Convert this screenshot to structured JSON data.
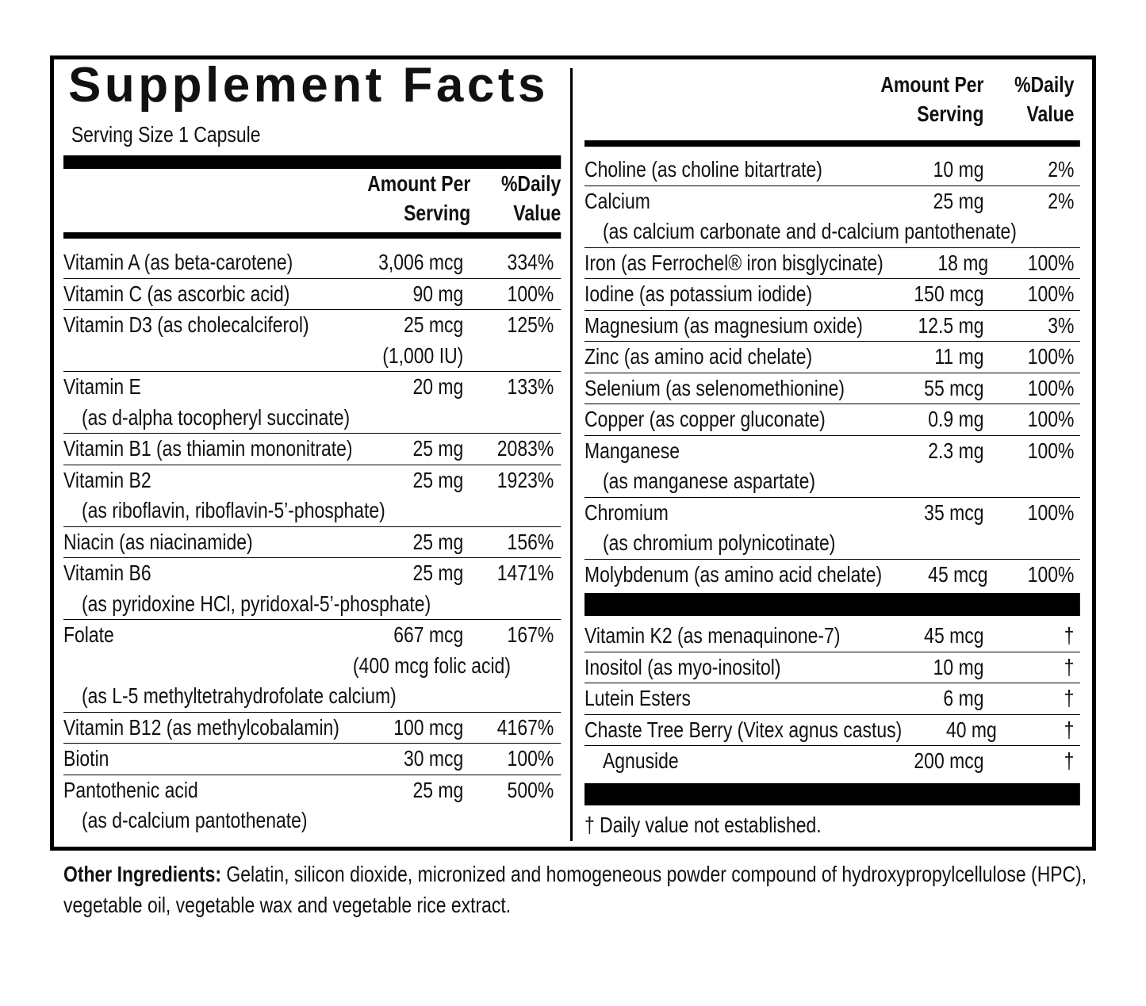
{
  "title": "Supplement Facts",
  "serving_size": "Serving Size 1 Capsule",
  "left": {
    "header": {
      "amount": [
        "Amount Per",
        "Serving"
      ],
      "dv": [
        "%Daily",
        "Value"
      ]
    },
    "rows": [
      {
        "name": "Vitamin A (as beta-carotene)",
        "amount": "3,006 mcg",
        "dv": "334%"
      },
      {
        "name": "Vitamin C (as ascorbic acid)",
        "amount": "90 mg",
        "dv": "100%"
      },
      {
        "name": "Vitamin D3 (as cholecalciferol)",
        "amount": "25 mcg",
        "dv": "125%",
        "amount_note": "(1,000 IU)"
      },
      {
        "name": "Vitamin E",
        "amount": "20 mg",
        "dv": "133%",
        "detail": "(as d-alpha tocopheryl succinate)"
      },
      {
        "name": "Vitamin B1 (as thiamin mononitrate)",
        "amount": "25 mg",
        "dv": "2083%"
      },
      {
        "name": "Vitamin B2",
        "amount": "25 mg",
        "dv": "1923%",
        "detail": "(as riboflavin, riboflavin-5’-phosphate)"
      },
      {
        "name": "Niacin (as niacinamide)",
        "amount": "25 mg",
        "dv": "156%"
      },
      {
        "name": "Vitamin B6",
        "amount": "25 mg",
        "dv": "1471%",
        "detail": "(as pyridoxine HCl, pyridoxal-5’-phosphate)"
      },
      {
        "name": "Folate",
        "amount": "667 mcg",
        "dv": "167%",
        "amount_note": "(400 mcg folic acid)",
        "detail": "(as L-5 methyltetrahydrofolate calcium)"
      },
      {
        "name": "Vitamin B12 (as methylcobalamin)",
        "amount": "100 mcg",
        "dv": "4167%"
      },
      {
        "name": "Biotin",
        "amount": "30 mcg",
        "dv": "100%"
      },
      {
        "name": "Pantothenic acid",
        "amount": "25 mg",
        "dv": "500%",
        "detail": "(as d-calcium pantothenate)"
      }
    ]
  },
  "right": {
    "header": {
      "amount": [
        "Amount Per",
        "Serving"
      ],
      "dv": [
        "%Daily",
        "Value"
      ]
    },
    "rows": [
      {
        "name": "Choline (as choline bitartrate)",
        "amount": "10 mg",
        "dv": "2%"
      },
      {
        "name": "Calcium",
        "amount": "25 mg",
        "dv": "2%",
        "detail": "(as calcium carbonate and d-calcium pantothenate)"
      },
      {
        "name": "Iron (as Ferrochel® iron bisglycinate)",
        "amount": "18 mg",
        "dv": "100%"
      },
      {
        "name": "Iodine (as potassium iodide)",
        "amount": "150 mcg",
        "dv": "100%"
      },
      {
        "name": "Magnesium (as magnesium oxide)",
        "amount": "12.5 mg",
        "dv": "3%"
      },
      {
        "name": "Zinc (as amino acid chelate)",
        "amount": "11 mg",
        "dv": "100%"
      },
      {
        "name": "Selenium (as selenomethionine)",
        "amount": "55 mcg",
        "dv": "100%"
      },
      {
        "name": "Copper (as copper gluconate)",
        "amount": "0.9 mg",
        "dv": "100%"
      },
      {
        "name": "Manganese",
        "amount": "2.3 mg",
        "dv": "100%",
        "detail": "(as manganese aspartate)"
      },
      {
        "name": "Chromium",
        "amount": "35 mcg",
        "dv": "100%",
        "detail": "(as chromium polynicotinate)"
      },
      {
        "name": "Molybdenum (as amino acid chelate)",
        "amount": "45 mcg",
        "dv": "100%"
      }
    ],
    "other_rows": [
      {
        "name": "Vitamin K2 (as menaquinone-7)",
        "amount": "45 mcg",
        "dv": "†"
      },
      {
        "name": "Inositol (as myo-inositol)",
        "amount": "10 mg",
        "dv": "†"
      },
      {
        "name": "Lutein Esters",
        "amount": "6 mg",
        "dv": "†"
      },
      {
        "name": "Chaste Tree Berry (Vitex agnus castus)",
        "amount": "40 mg",
        "dv": "†",
        "components": [
          {
            "name": "Agnuside",
            "amount": "200 mcg",
            "dv": "†"
          }
        ]
      }
    ],
    "footnote": "† Daily value not established."
  },
  "other_ingredients": {
    "label": "Other Ingredients:",
    "text": "Gelatin, silicon dioxide, micronized and homogeneous powder compound of hydroxypropylcellulose (HPC), vegetable oil, vegetable wax and vegetable rice extract."
  }
}
